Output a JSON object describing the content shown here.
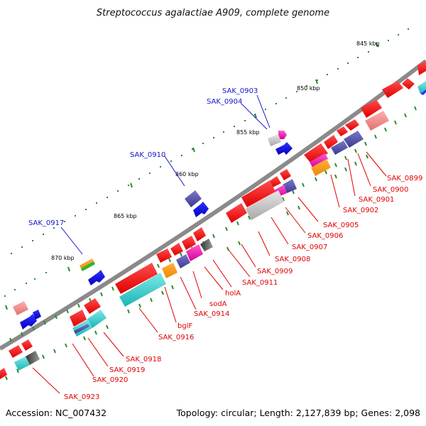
{
  "title": "Streptococcus agalactiae A909, complete genome",
  "footer": {
    "accession": "Accession: NC_007432",
    "summary": "Topology: circular; Length: 2,127,839 bp; Genes: 2,098"
  },
  "colors": {
    "backbone": "#8a8a8a",
    "forward_label": "#1414c8",
    "reverse_label": "#e00000",
    "tick": "#2e8b2e"
  },
  "kbp_markers": [
    {
      "label": "845 kbp"
    },
    {
      "label": "850 kbp"
    },
    {
      "label": "855 kbp"
    },
    {
      "label": "860 kbp"
    },
    {
      "label": "865 kbp"
    },
    {
      "label": "870 kbp"
    }
  ],
  "upper_labels": [
    {
      "label": "SAK_0903"
    },
    {
      "label": "SAK_0904"
    },
    {
      "label": "SAK_0910"
    },
    {
      "label": "SAK_0917"
    }
  ],
  "lower_labels": [
    {
      "label": "SAK_0899"
    },
    {
      "label": "SAK_0900"
    },
    {
      "label": "SAK_0901"
    },
    {
      "label": "SAK_0902"
    },
    {
      "label": "SAK_0905"
    },
    {
      "label": "SAK_0906"
    },
    {
      "label": "SAK_0907"
    },
    {
      "label": "SAK_0908"
    },
    {
      "label": "SAK_0909"
    },
    {
      "label": "SAK_0911"
    },
    {
      "label": "holA"
    },
    {
      "label": "sodA"
    },
    {
      "label": "SAK_0914"
    },
    {
      "label": "bglF"
    },
    {
      "label": "SAK_0916"
    },
    {
      "label": "SAK_0918"
    },
    {
      "label": "SAK_0919"
    },
    {
      "label": "SAK_0920"
    },
    {
      "label": "SAK_0923"
    }
  ]
}
